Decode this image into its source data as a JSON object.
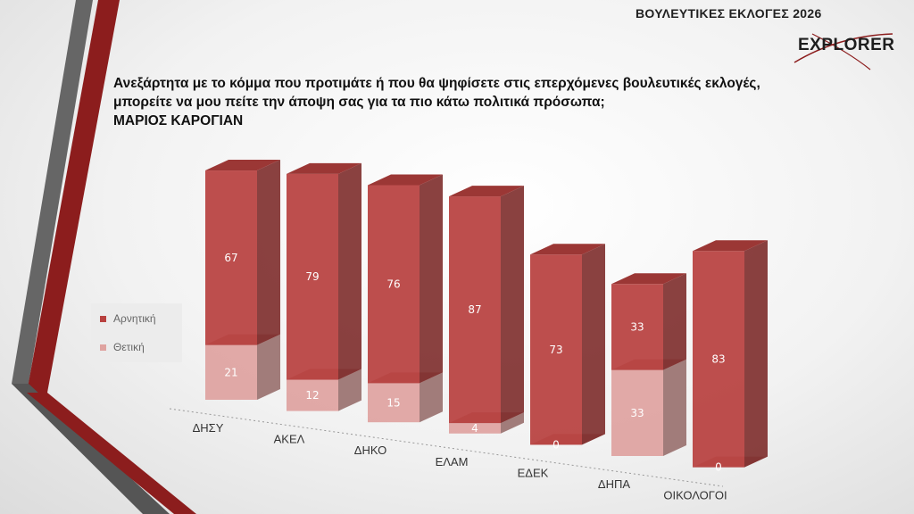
{
  "header": {
    "title": "ΒΟΥΛΕΥΤΙΚΕΣ ΕΚΛΟΓΕΣ 2026"
  },
  "logo": {
    "text": "EXPLORER"
  },
  "question": {
    "line1": "Ανεξάρτητα με το κόμμα που προτιμάτε ή που θα ψηφίσετε στις επερχόμενες βουλευτικές εκλογές,",
    "line2": "μπορείτε να μου πείτε την άποψη σας για τα πιο κάτω πολιτικά πρόσωπα;",
    "line3": "ΜΑΡΙΟΣ ΚΑΡΟΓΙΑΝ"
  },
  "legend": {
    "negative": "Αρνητική",
    "positive": "Θετική"
  },
  "colors": {
    "negative": "#b8413f",
    "positive": "#dfa3a0",
    "stripe_dark": "#5a5a5a",
    "stripe_red": "#8c1d1d"
  },
  "chart_data": {
    "type": "bar",
    "stacked": true,
    "three_d": true,
    "categories": [
      "ΔΗΣΥ",
      "ΑΚΕΛ",
      "ΔΗΚΟ",
      "ΕΛΑΜ",
      "ΕΔΕΚ",
      "ΔΗΠΑ",
      "ΟΙΚΟΛΟΓΟΙ"
    ],
    "series": [
      {
        "name": "Θετική",
        "values": [
          21,
          12,
          15,
          4,
          0,
          33,
          0
        ]
      },
      {
        "name": "Αρνητική",
        "values": [
          67,
          79,
          76,
          87,
          73,
          33,
          83
        ]
      }
    ],
    "legend_position": "left",
    "grid": false
  }
}
